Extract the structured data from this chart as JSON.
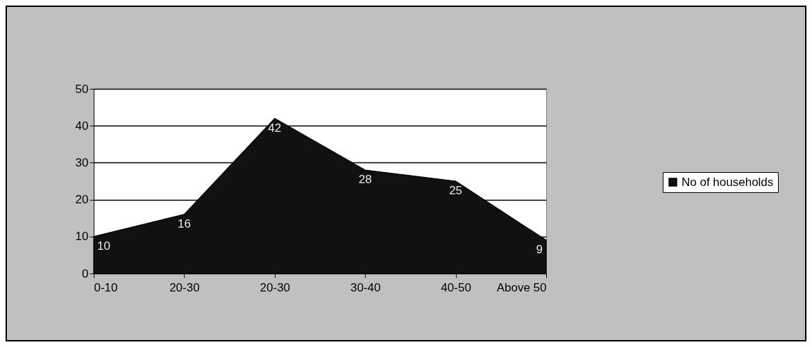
{
  "chart_data": {
    "type": "area",
    "categories": [
      "0-10",
      "20-30",
      "20-30",
      "30-40",
      "40-50",
      "Above 50"
    ],
    "series": [
      {
        "name": "No of households",
        "color": "#111111",
        "values": [
          10,
          16,
          42,
          28,
          25,
          9
        ]
      }
    ],
    "ylim": [
      0,
      50
    ],
    "yticks": [
      0,
      10,
      20,
      30,
      40,
      50
    ],
    "grid": "y",
    "legend": "right",
    "data_labels": true
  }
}
